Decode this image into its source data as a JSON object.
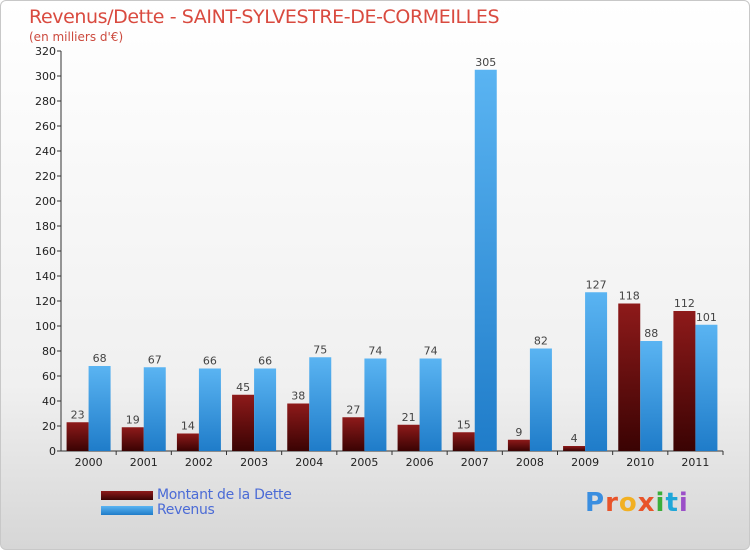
{
  "title": "Revenus/Dette - SAINT-SYLVESTRE-DE-CORMEILLES",
  "unit": "(en milliers d'€)",
  "legend": [
    {
      "label": "Montant de la Dette",
      "color": "#6b0a0a"
    },
    {
      "label": "Revenus",
      "color": "#3a9ee8"
    }
  ],
  "logo": "Proxiti",
  "chart_data": {
    "type": "bar",
    "title": "Revenus/Dette - SAINT-SYLVESTRE-DE-CORMEILLES",
    "ylabel": "(en milliers d'€)",
    "categories": [
      "2000",
      "2001",
      "2002",
      "2003",
      "2004",
      "2005",
      "2006",
      "2007",
      "2008",
      "2009",
      "2010",
      "2011"
    ],
    "series": [
      {
        "name": "Montant de la Dette",
        "color": "#6b0a0a",
        "values": [
          23,
          19,
          14,
          45,
          38,
          27,
          21,
          15,
          9,
          4,
          118,
          112
        ]
      },
      {
        "name": "Revenus",
        "color": "#3a9ee8",
        "values": [
          68,
          67,
          66,
          66,
          75,
          74,
          74,
          305,
          82,
          127,
          88,
          101
        ]
      }
    ],
    "ylim": [
      0,
      320
    ],
    "yticks": [
      0,
      20,
      40,
      60,
      80,
      100,
      120,
      140,
      160,
      180,
      200,
      220,
      240,
      260,
      280,
      300,
      320
    ],
    "grid": false,
    "legend_position": "bottom-left"
  }
}
